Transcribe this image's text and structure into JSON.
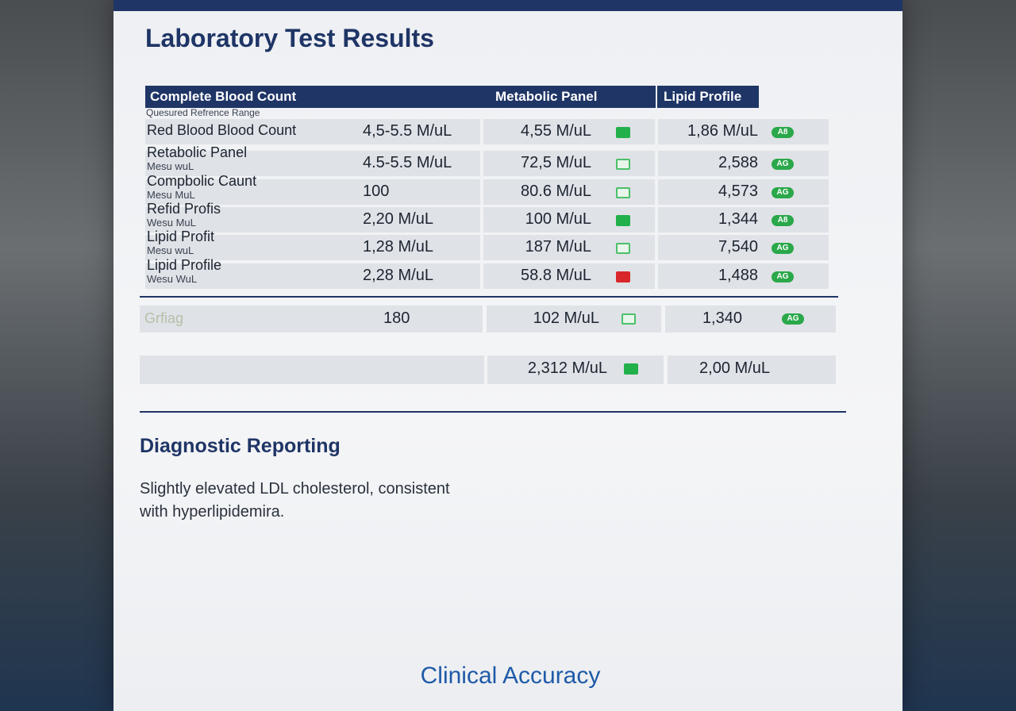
{
  "header": {
    "title": "Laboratory Test Results"
  },
  "table": {
    "columns": [
      "Complete Blood Count",
      "Metabolic Panel",
      "Lipid Profile"
    ],
    "subheader": "Quesured Refrence Range",
    "rows": [
      {
        "name": "Red Blood Blood Count",
        "range": "4,5-5.5 M/uL",
        "metabolic": "4,55 M/uL",
        "lipid": "1,86 M/uL",
        "badge": "A8"
      },
      {
        "name": "Retabolic Panel",
        "sub": "Mesu wuL",
        "range": "4.5-5.5 M/uL",
        "metabolic": "72,5 M/uL",
        "lipid": "2,588",
        "badge": "AG"
      },
      {
        "name": "Compbolic Caunt",
        "sub": "Mesu MuL",
        "range": "100",
        "metabolic": "80.6 M/uL",
        "lipid": "4,573",
        "badge": "AG"
      },
      {
        "name": "Refid Profis",
        "sub": "Wesu MuL",
        "range": "2,20 M/uL",
        "metabolic": "100 M/uL",
        "lipid": "1,344",
        "badge": "A8"
      },
      {
        "name": "Lipid Profit",
        "sub": "Mesu wuL",
        "range": "1,28 M/uL",
        "metabolic": "187 M/uL",
        "lipid": "7,540",
        "badge": "AG"
      },
      {
        "name": "Lipid Profile",
        "sub": "Wesu WuL",
        "range": "2,28 M/uL",
        "metabolic": "58.8 M/uL",
        "lipid": "1,488",
        "badge": "AG"
      }
    ],
    "flag_row": {
      "name": "Grfiag",
      "range": "180",
      "metabolic": "102 M/uL",
      "lipid": "1,340",
      "badge": "AG"
    },
    "total_row": {
      "metabolic": "2,312 M/uL",
      "lipid": "2,00 M/uL"
    }
  },
  "report": {
    "heading": "Diagnostic Reporting",
    "text": "Slightly elevated LDL cholesterol, consistent with hyperlipidemira."
  },
  "footer": {
    "text": "Clinical Accuracy"
  }
}
